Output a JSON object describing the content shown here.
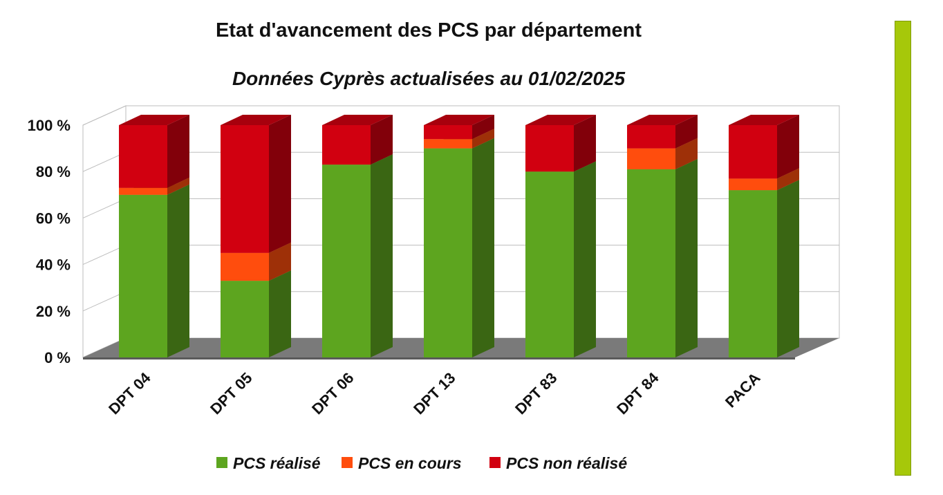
{
  "chart_data": {
    "type": "bar",
    "stacked": true,
    "three_d": true,
    "title": "Etat d'avancement des PCS par département",
    "subtitle": "Données Cyprès actualisées au 01/02/2025",
    "categories": [
      "DPT 04",
      "DPT 05",
      "DPT 06",
      "DPT 13",
      "DPT 83",
      "DPT 84",
      "PACA"
    ],
    "series": [
      {
        "name": "PCS réalisé",
        "color": "#5da51f",
        "values": [
          70,
          33,
          83,
          90,
          80,
          81,
          72
        ]
      },
      {
        "name": "PCS  en cours",
        "color": "#ff4d0d",
        "values": [
          3,
          12,
          0,
          4,
          0,
          9,
          5
        ]
      },
      {
        "name": "PCS non réalisé",
        "color": "#d10010",
        "values": [
          27,
          55,
          17,
          6,
          20,
          10,
          23
        ]
      }
    ],
    "yticks": [
      "0 %",
      "20 %",
      "40 %",
      "60 %",
      "80 %",
      "100 %"
    ],
    "ylim": [
      0,
      100
    ],
    "xlabel": "",
    "ylabel": "",
    "legend_position": "bottom"
  },
  "decor": {
    "side_bar_color": "#a6c80a"
  }
}
